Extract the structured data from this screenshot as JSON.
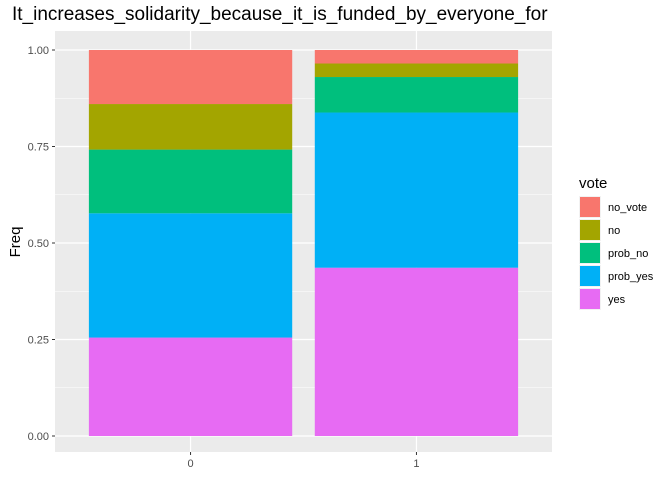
{
  "chart_data": {
    "type": "bar",
    "stacked": true,
    "title": "It_increases_solidarity_because_it_is_funded_by_everyone_for",
    "xlabel": "",
    "ylabel": "Freq",
    "ylim": [
      0,
      1.05
    ],
    "y_ticks": [
      "0.00",
      "0.25",
      "0.50",
      "0.75",
      "1.00"
    ],
    "categories": [
      "0",
      "1"
    ],
    "grid": true,
    "legend": {
      "title": "vote",
      "position": "right"
    },
    "series": [
      {
        "name": "no_vote",
        "color": "#F8766D",
        "values": [
          0.14,
          0.035
        ]
      },
      {
        "name": "no",
        "color": "#A3A500",
        "values": [
          0.118,
          0.035
        ]
      },
      {
        "name": "prob_no",
        "color": "#00BF7D",
        "values": [
          0.165,
          0.092
        ]
      },
      {
        "name": "prob_yes",
        "color": "#00B0F6",
        "values": [
          0.322,
          0.402
        ]
      },
      {
        "name": "yes",
        "color": "#E76BF3",
        "values": [
          0.255,
          0.436
        ]
      }
    ],
    "colors": {
      "panel_bg": "#EBEBEB",
      "grid": "#FFFFFF",
      "axis_text": "#4D4D4D"
    }
  }
}
